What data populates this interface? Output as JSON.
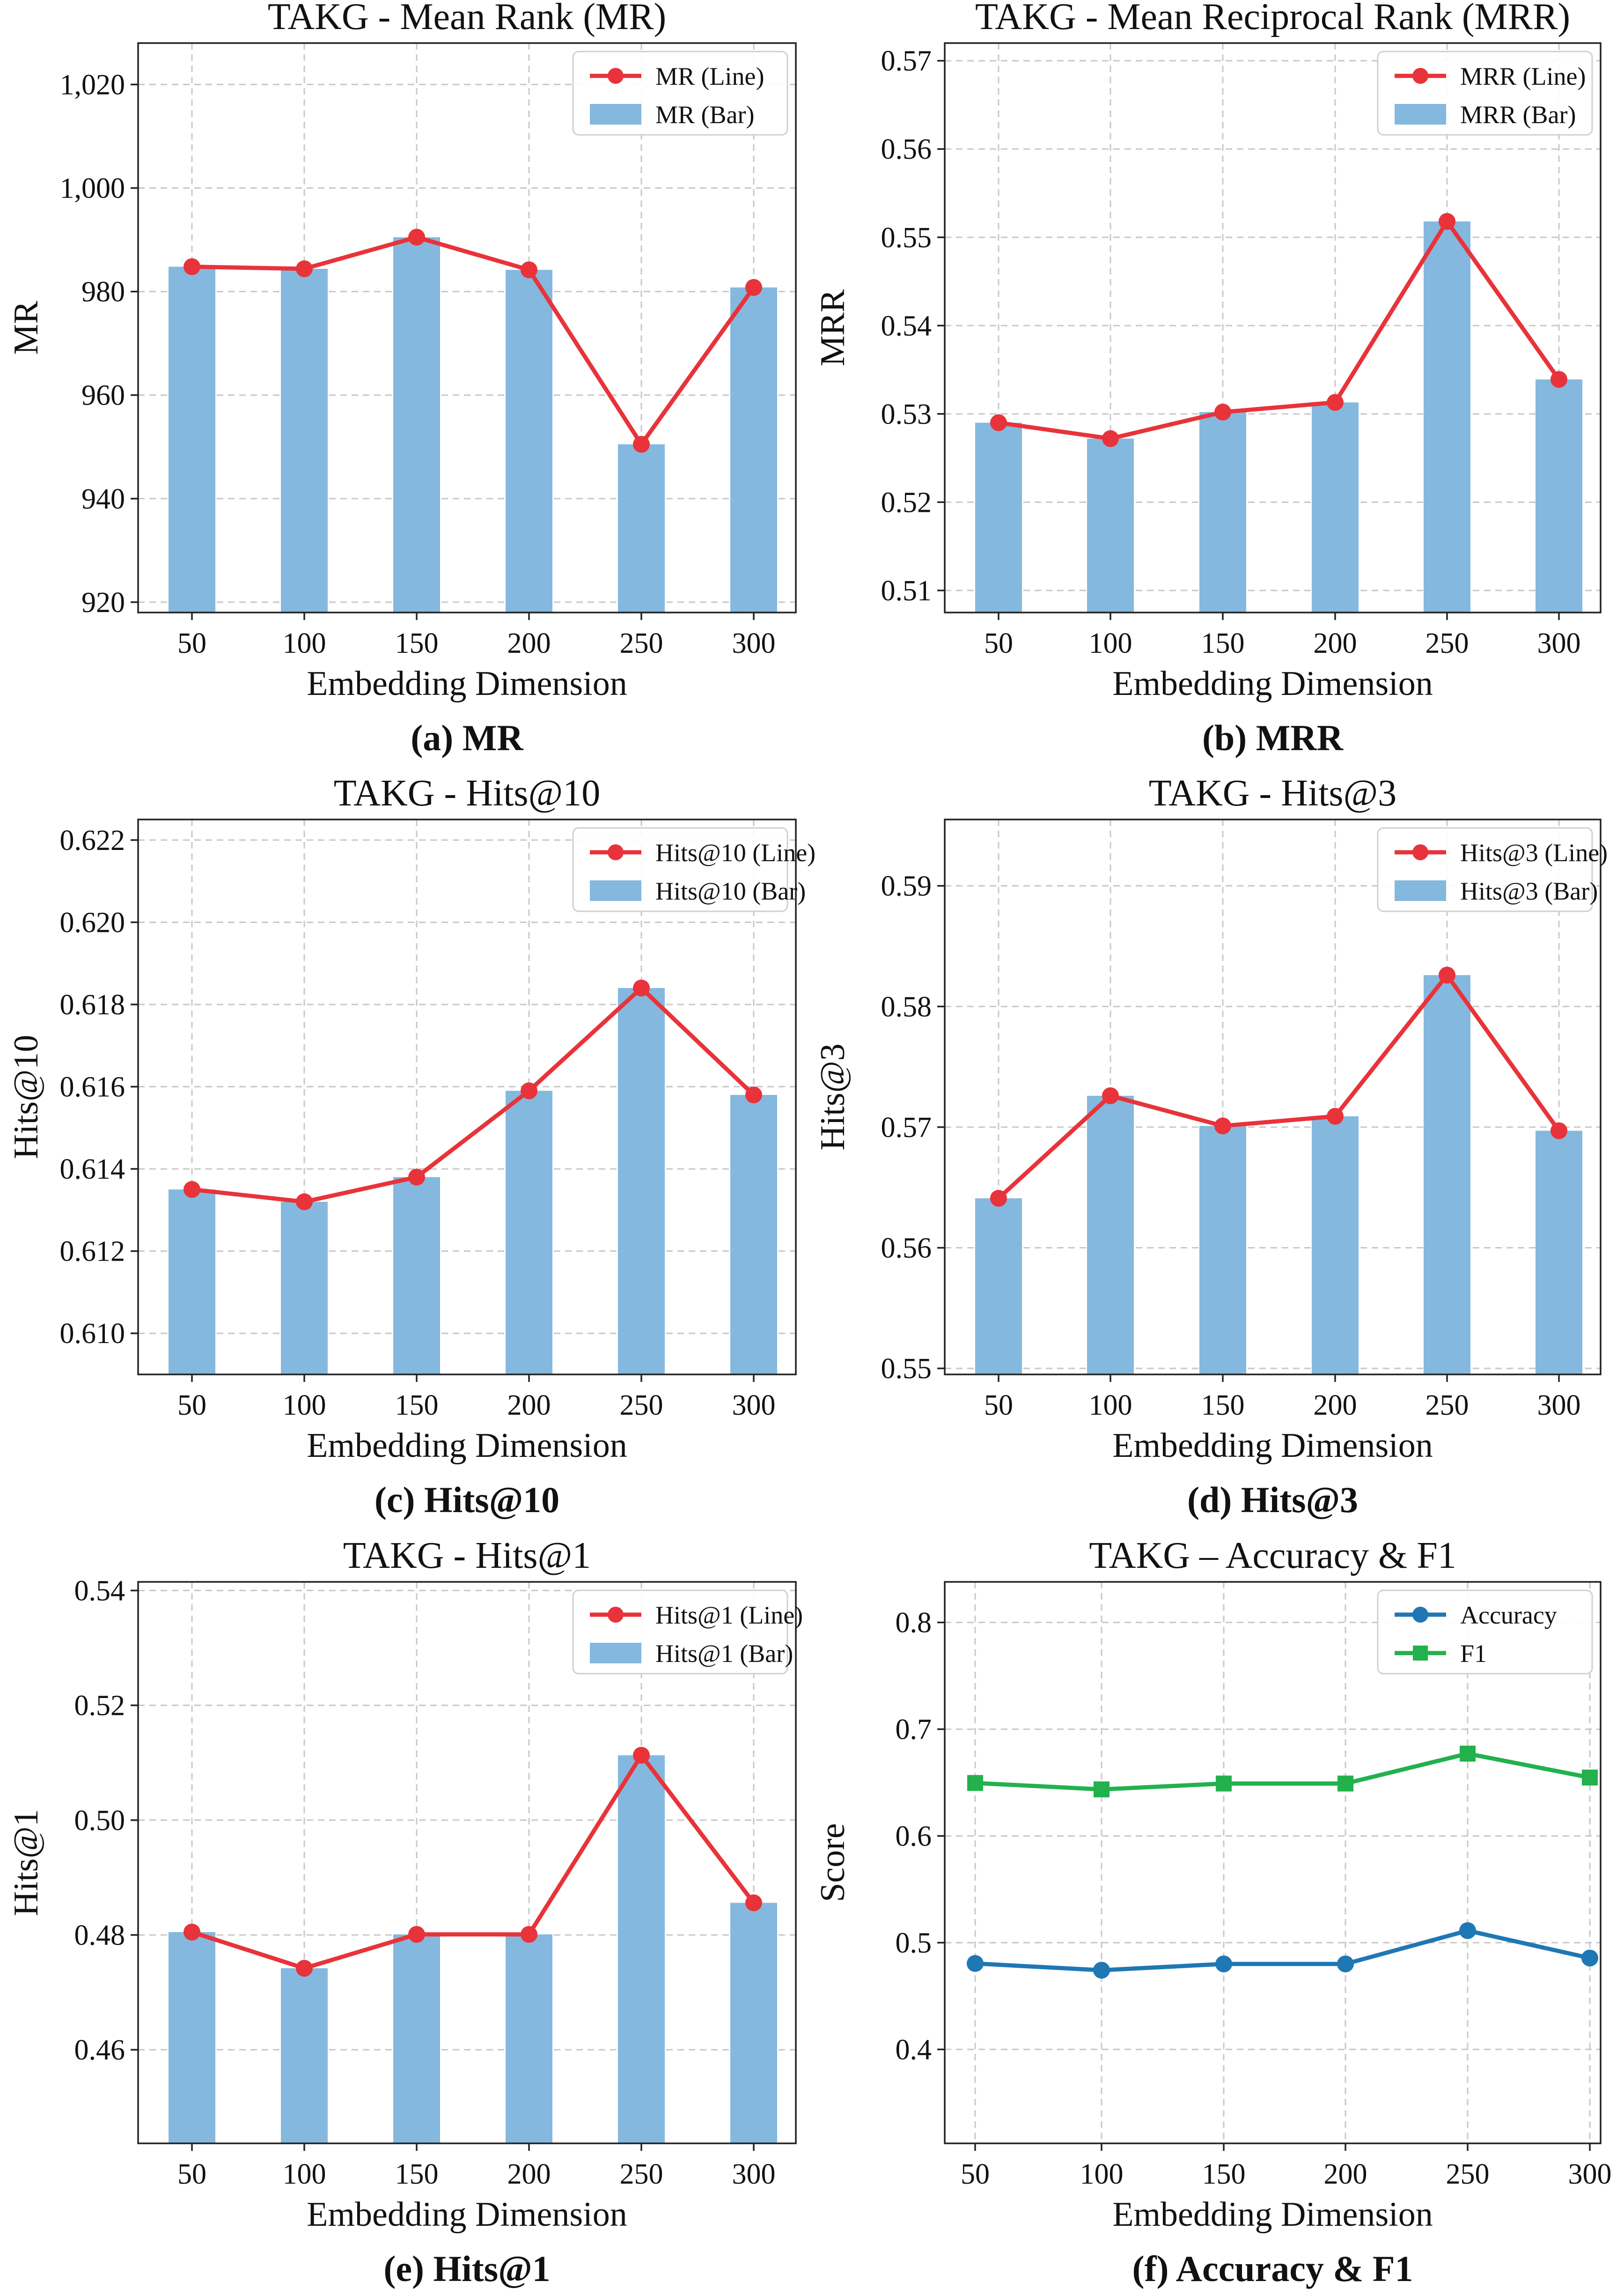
{
  "figure": {
    "colors": {
      "line": "#e8333a",
      "bar": "#85b8de",
      "accuracy": "#1f77b4",
      "f1": "#22b14c",
      "grid": "#c8c8c8",
      "axis": "#222222"
    }
  },
  "chart_data": [
    {
      "id": "a",
      "type": "bar+line",
      "title": "TAKG - Mean Rank (MR)",
      "caption": "(a) MR",
      "xlabel": "Embedding Dimension",
      "ylabel": "MR",
      "categories": [
        "50",
        "100",
        "150",
        "200",
        "250",
        "300"
      ],
      "ylim": [
        918,
        1028
      ],
      "yticks": [
        920,
        940,
        960,
        980,
        1000,
        1020
      ],
      "ytick_labels": [
        "920",
        "940",
        "960",
        "980",
        "1,000",
        "1,020"
      ],
      "series": [
        {
          "name": "MR (Line)",
          "kind": "line",
          "color": "#e8333a",
          "marker": "circle",
          "values": [
            984.8,
            984.4,
            990.5,
            984.2,
            950.5,
            980.8
          ]
        },
        {
          "name": "MR (Bar)",
          "kind": "bar",
          "color": "#85b8de",
          "values": [
            984.8,
            984.4,
            990.5,
            984.2,
            950.5,
            980.8
          ]
        }
      ]
    },
    {
      "id": "b",
      "type": "bar+line",
      "title": "TAKG - Mean Reciprocal Rank (MRR)",
      "caption": "(b) MRR",
      "xlabel": "Embedding Dimension",
      "ylabel": "MRR",
      "categories": [
        "50",
        "100",
        "150",
        "200",
        "250",
        "300"
      ],
      "ylim": [
        0.5075,
        0.572
      ],
      "yticks": [
        0.51,
        0.52,
        0.53,
        0.54,
        0.55,
        0.56,
        0.57
      ],
      "ytick_labels": [
        "0.51",
        "0.52",
        "0.53",
        "0.54",
        "0.55",
        "0.56",
        "0.57"
      ],
      "series": [
        {
          "name": "MRR (Line)",
          "kind": "line",
          "color": "#e8333a",
          "marker": "circle",
          "values": [
            0.529,
            0.5272,
            0.5302,
            0.5313,
            0.5518,
            0.5339
          ]
        },
        {
          "name": "MRR (Bar)",
          "kind": "bar",
          "color": "#85b8de",
          "values": [
            0.529,
            0.5272,
            0.5302,
            0.5313,
            0.5518,
            0.5339
          ]
        }
      ]
    },
    {
      "id": "c",
      "type": "bar+line",
      "title": "TAKG - Hits@10",
      "caption": "(c) Hits@10",
      "xlabel": "Embedding Dimension",
      "ylabel": "Hits@10",
      "categories": [
        "50",
        "100",
        "150",
        "200",
        "250",
        "300"
      ],
      "ylim": [
        0.609,
        0.6225
      ],
      "yticks": [
        0.61,
        0.612,
        0.614,
        0.616,
        0.618,
        0.62,
        0.622
      ],
      "ytick_labels": [
        "0.610",
        "0.612",
        "0.614",
        "0.616",
        "0.618",
        "0.620",
        "0.622"
      ],
      "series": [
        {
          "name": "Hits@10 (Line)",
          "kind": "line",
          "color": "#e8333a",
          "marker": "circle",
          "values": [
            0.6135,
            0.6132,
            0.6138,
            0.6159,
            0.6184,
            0.6158
          ]
        },
        {
          "name": "Hits@10 (Bar)",
          "kind": "bar",
          "color": "#85b8de",
          "values": [
            0.6135,
            0.6132,
            0.6138,
            0.6159,
            0.6184,
            0.6158
          ]
        }
      ]
    },
    {
      "id": "d",
      "type": "bar+line",
      "title": "TAKG - Hits@3",
      "caption": "(d) Hits@3",
      "xlabel": "Embedding Dimension",
      "ylabel": "Hits@3",
      "categories": [
        "50",
        "100",
        "150",
        "200",
        "250",
        "300"
      ],
      "ylim": [
        0.5495,
        0.5955
      ],
      "yticks": [
        0.55,
        0.56,
        0.57,
        0.58,
        0.59
      ],
      "ytick_labels": [
        "0.55",
        "0.56",
        "0.57",
        "0.58",
        "0.59"
      ],
      "series": [
        {
          "name": "Hits@3 (Line)",
          "kind": "line",
          "color": "#e8333a",
          "marker": "circle",
          "values": [
            0.5641,
            0.5726,
            0.5701,
            0.5709,
            0.5826,
            0.5697
          ]
        },
        {
          "name": "Hits@3 (Bar)",
          "kind": "bar",
          "color": "#85b8de",
          "values": [
            0.5641,
            0.5726,
            0.5701,
            0.5709,
            0.5826,
            0.5697
          ]
        }
      ]
    },
    {
      "id": "e",
      "type": "bar+line",
      "title": "TAKG - Hits@1",
      "caption": "(e) Hits@1",
      "xlabel": "Embedding Dimension",
      "ylabel": "Hits@1",
      "categories": [
        "50",
        "100",
        "150",
        "200",
        "250",
        "300"
      ],
      "ylim": [
        0.4437,
        0.5415
      ],
      "yticks": [
        0.46,
        0.48,
        0.5,
        0.52,
        0.54
      ],
      "ytick_labels": [
        "0.46",
        "0.48",
        "0.50",
        "0.52",
        "0.54"
      ],
      "series": [
        {
          "name": "Hits@1 (Line)",
          "kind": "line",
          "color": "#e8333a",
          "marker": "circle",
          "values": [
            0.4805,
            0.4742,
            0.4801,
            0.4801,
            0.5113,
            0.4856
          ]
        },
        {
          "name": "Hits@1 (Bar)",
          "kind": "bar",
          "color": "#85b8de",
          "values": [
            0.4805,
            0.4742,
            0.4801,
            0.4801,
            0.5113,
            0.4856
          ]
        }
      ]
    },
    {
      "id": "f",
      "type": "line",
      "title": "TAKG – Accuracy & F1",
      "caption": "(f) Accuracy & F1",
      "xlabel": "Embedding Dimension",
      "ylabel": "Score",
      "categories": [
        "50",
        "100",
        "150",
        "200",
        "250",
        "300"
      ],
      "ylim": [
        0.312,
        0.838
      ],
      "yticks": [
        0.4,
        0.5,
        0.6,
        0.7,
        0.8
      ],
      "ytick_labels": [
        "0.4",
        "0.5",
        "0.6",
        "0.7",
        "0.8"
      ],
      "series": [
        {
          "name": "Accuracy",
          "kind": "line",
          "color": "#1f77b4",
          "marker": "circle",
          "values": [
            0.4805,
            0.4742,
            0.4801,
            0.4801,
            0.5113,
            0.4856
          ]
        },
        {
          "name": "F1",
          "kind": "line",
          "color": "#22b14c",
          "marker": "square",
          "values": [
            0.6496,
            0.6436,
            0.6491,
            0.6491,
            0.6771,
            0.6547
          ]
        }
      ]
    }
  ]
}
